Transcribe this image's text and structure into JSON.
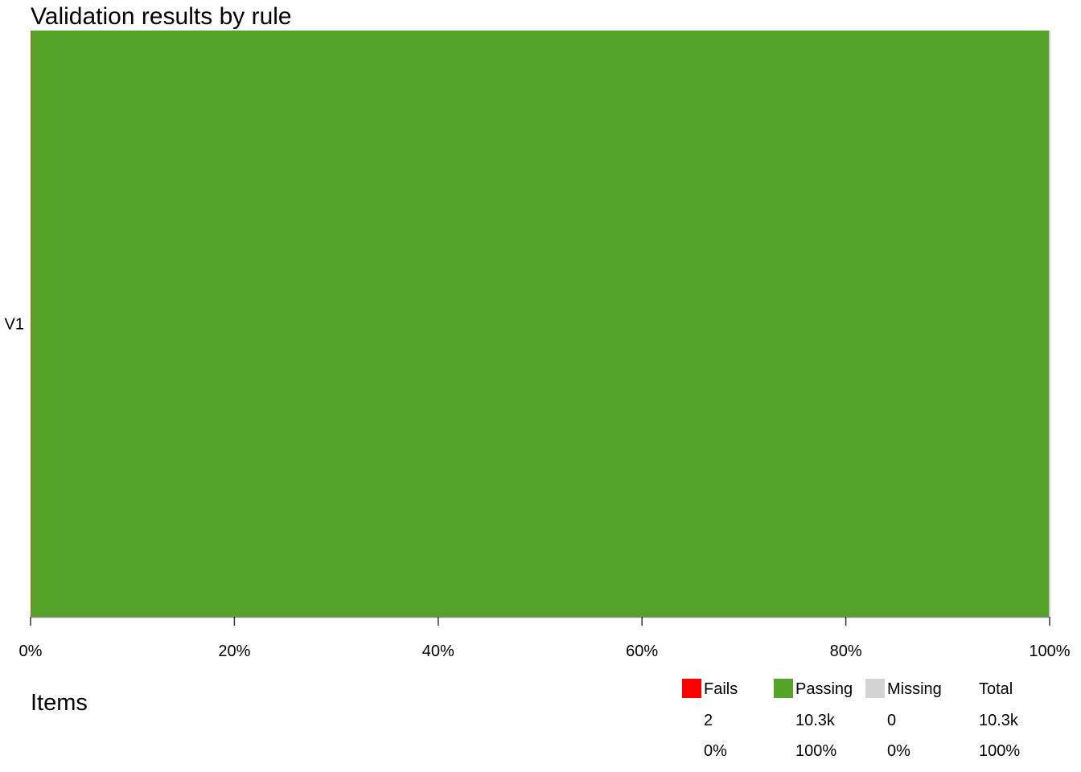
{
  "chart_data": {
    "type": "bar",
    "title": "Validation results by rule",
    "orientation": "horizontal",
    "stacked": true,
    "normalized": true,
    "categories": [
      "V1"
    ],
    "series": [
      {
        "name": "Fails",
        "color": "#FF0000",
        "values": [
          0.0002
        ]
      },
      {
        "name": "Passing",
        "color": "#56A32A",
        "values": [
          0.9998
        ]
      },
      {
        "name": "Missing",
        "color": "#D3D3D3",
        "values": [
          0
        ]
      }
    ],
    "xlim": [
      0,
      1
    ],
    "x_ticks": [
      0,
      0.2,
      0.4,
      0.6,
      0.8,
      1.0
    ],
    "x_tick_labels": [
      "0%",
      "20%",
      "40%",
      "60%",
      "80%",
      "100%"
    ],
    "grid": false,
    "legend_position": "bottom-right"
  },
  "section_label": "Items",
  "legend": {
    "entries": [
      {
        "name": "Fails",
        "color": "#FF0000",
        "count": "2",
        "percent": "0%"
      },
      {
        "name": "Passing",
        "color": "#56A32A",
        "count": "10.3k",
        "percent": "100%"
      },
      {
        "name": "Missing",
        "color": "#D3D3D3",
        "count": "0",
        "percent": "0%"
      }
    ],
    "total": {
      "name": "Total",
      "count": "10.3k",
      "percent": "100%"
    }
  }
}
